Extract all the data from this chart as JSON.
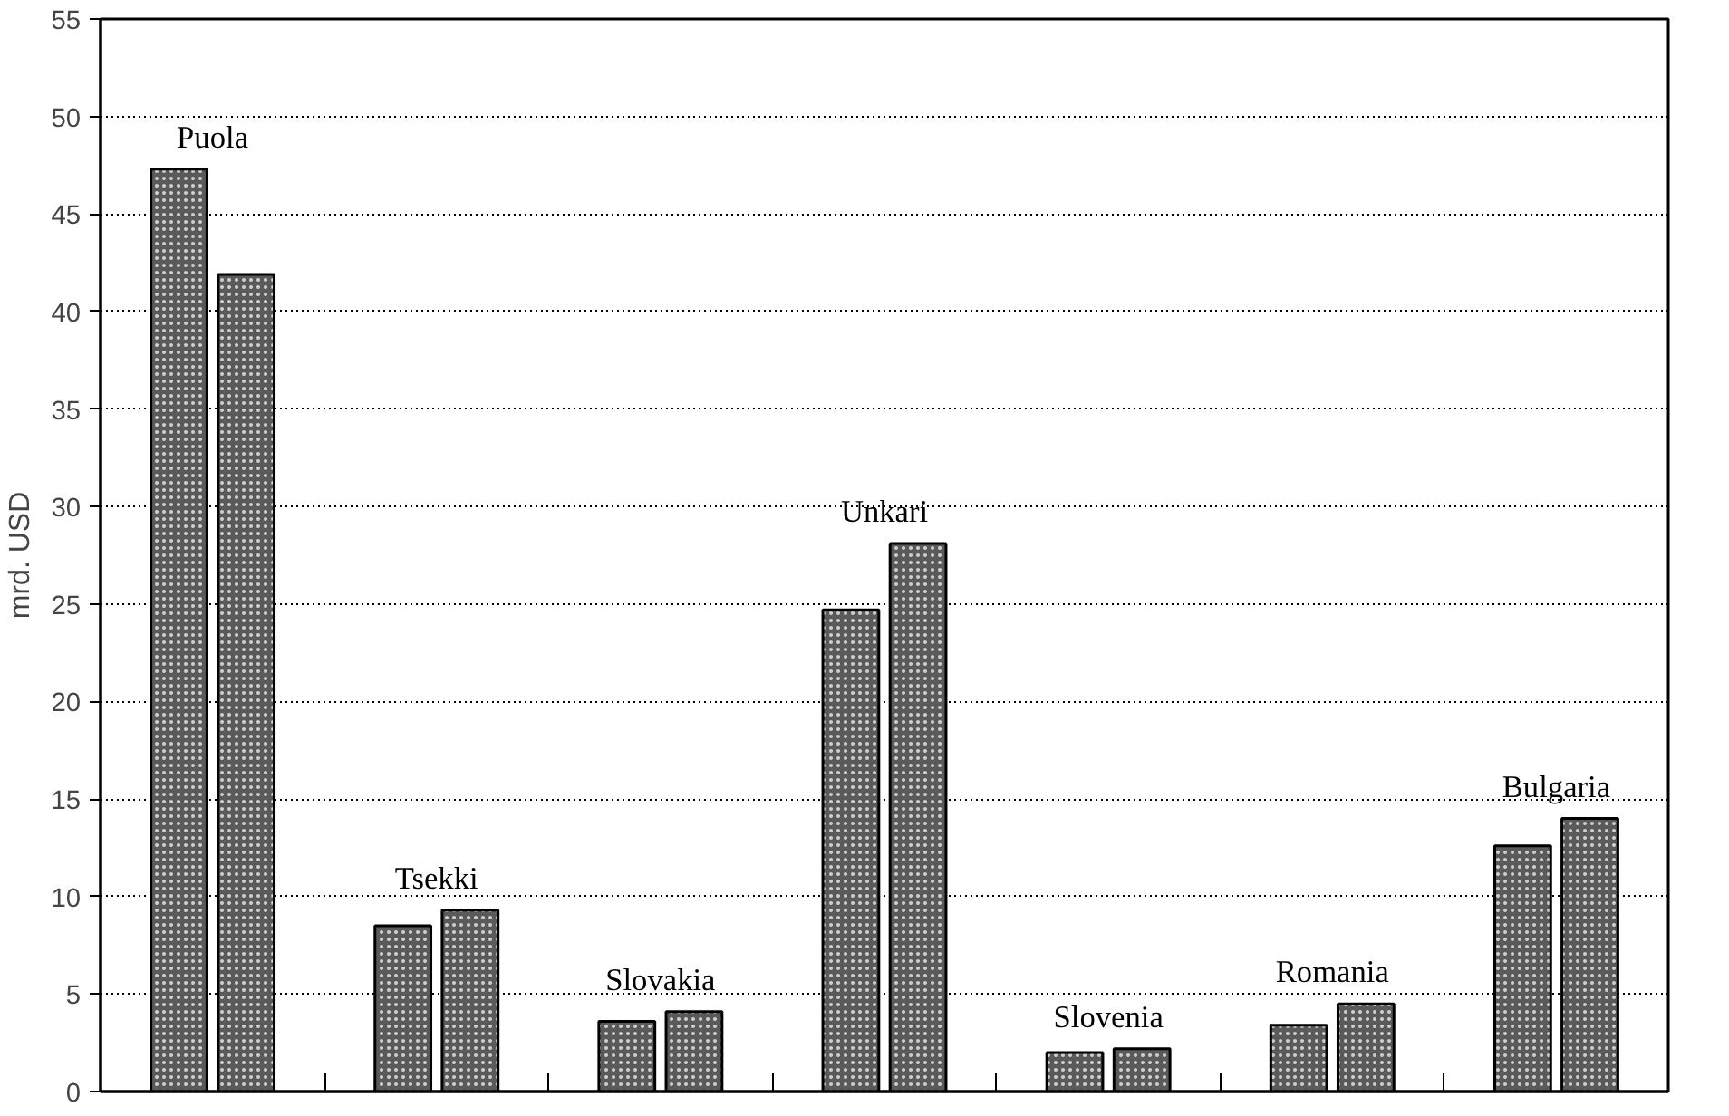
{
  "chart_data": {
    "type": "bar",
    "ylabel": "mrd. USD",
    "categories": [
      "Puola",
      "Tsekki",
      "Slovakia",
      "Unkari",
      "Slovenia",
      "Romania",
      "Bulgaria"
    ],
    "series": [
      {
        "color": "#5a5a5a",
        "values": [
          47.3,
          8.5,
          3.6,
          24.7,
          2.0,
          3.4,
          12.6
        ]
      },
      {
        "color": "#5a5a5a",
        "values": [
          41.9,
          9.3,
          4.1,
          28.1,
          2.2,
          4.5,
          14.0
        ]
      }
    ],
    "ylim": [
      0,
      55
    ],
    "yticks": [
      0,
      5,
      10,
      15,
      20,
      25,
      30,
      35,
      40,
      45,
      50,
      55
    ],
    "grid": "y"
  }
}
